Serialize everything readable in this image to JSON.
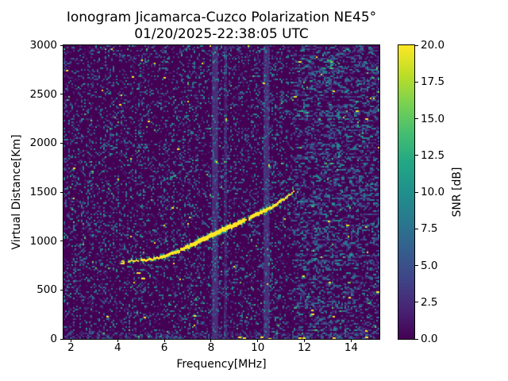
{
  "title": {
    "line1": "Ionogram Jicamarca-Cuzco Polarization NE45°",
    "line2": "01/20/2025-22:38:05 UTC"
  },
  "chart_data": {
    "type": "heatmap",
    "title": "Ionogram Jicamarca-Cuzco Polarization NE45°",
    "subtitle": "01/20/2025-22:38:05 UTC",
    "xlabel": "Frequency[MHz]",
    "ylabel": "Virtual Distance[Km]",
    "xlim": [
      1.68,
      15.21
    ],
    "ylim": [
      0,
      3000
    ],
    "xticks": [
      2,
      4,
      6,
      8,
      10,
      12,
      14
    ],
    "yticks": [
      0,
      500,
      1000,
      1500,
      2000,
      2500,
      3000
    ],
    "grid": false,
    "colormap": "viridis",
    "colors": {
      "background": "#440154",
      "trace": "#fde725",
      "frame": "#000000",
      "figure_background": "#ffffff",
      "rfi_stripe": "rgba(92,98,165,1)"
    },
    "colorbar": {
      "label": "SNR [dB]",
      "lim": [
        0,
        20
      ],
      "ticks": [
        0,
        2.5,
        5,
        7.5,
        10,
        12.5,
        15,
        17.5,
        20
      ],
      "position": "right"
    },
    "main_trace_snr_db": 20,
    "main_trace_points_mhz_km": [
      [
        4.15,
        790
      ],
      [
        4.5,
        795
      ],
      [
        5.0,
        803
      ],
      [
        5.5,
        815
      ],
      [
        6.0,
        842
      ],
      [
        6.5,
        886
      ],
      [
        7.0,
        938
      ],
      [
        7.5,
        1000
      ],
      [
        8.0,
        1058
      ],
      [
        8.5,
        1112
      ],
      [
        9.0,
        1163
      ],
      [
        9.5,
        1218
      ],
      [
        10.0,
        1278
      ],
      [
        10.5,
        1332
      ],
      [
        11.0,
        1405
      ],
      [
        11.25,
        1450
      ],
      [
        11.45,
        1485
      ],
      [
        11.55,
        1510
      ]
    ],
    "trace_gap_mhz": [
      9.44,
      9.58
    ],
    "second_hop_points_mhz_km": [
      [
        4.6,
        1505
      ],
      [
        5.0,
        1540
      ],
      [
        5.5,
        1560
      ],
      [
        6.0,
        1615
      ],
      [
        6.5,
        1690
      ],
      [
        7.0,
        1775
      ],
      [
        7.4,
        1845
      ]
    ],
    "rfi_bands_mhz": [
      {
        "from": 8.04,
        "to": 8.3,
        "strength": 0.9
      },
      {
        "from": 8.55,
        "to": 8.68,
        "strength": 0.5
      },
      {
        "from": 10.27,
        "to": 10.49,
        "strength": 0.9
      }
    ],
    "noise": {
      "speckle_fraction": 0.38,
      "speckle_max_db": 11,
      "dense_right_above_mhz": 11.55,
      "dense_left_below_mhz": 1.85,
      "dense_bottom_below_km": 60
    },
    "yellow_specks_mhz_km": [
      [
        1.78,
        2745
      ],
      [
        4.6,
        2680
      ],
      [
        5.95,
        2675
      ],
      [
        4.05,
        2400
      ],
      [
        5.3,
        2230
      ],
      [
        2.1,
        1755
      ],
      [
        6.55,
        1950
      ],
      [
        6.3,
        1350
      ],
      [
        10.2,
        2620
      ],
      [
        13.2,
        2540
      ],
      [
        11.9,
        645
      ],
      [
        13.05,
        585
      ],
      [
        13.0,
        1210
      ],
      [
        12.3,
        300
      ],
      [
        13.9,
        430
      ],
      [
        3.5,
        235
      ],
      [
        5.1,
        230
      ],
      [
        7.25,
        240
      ],
      [
        13.2,
        235
      ],
      [
        14.6,
        90
      ]
    ],
    "bottom_interference_mhz_km": [
      [
        9.15,
        25
      ],
      [
        9.35,
        18
      ],
      [
        10.1,
        22
      ],
      [
        10.45,
        12
      ],
      [
        11.75,
        20
      ],
      [
        11.9,
        14
      ],
      [
        13.2,
        18
      ],
      [
        14.6,
        22
      ]
    ],
    "trace_foot_dashes_mhz_km": [
      [
        4.12,
        778
      ],
      [
        4.8,
        685
      ],
      [
        5.0,
        625
      ]
    ]
  }
}
